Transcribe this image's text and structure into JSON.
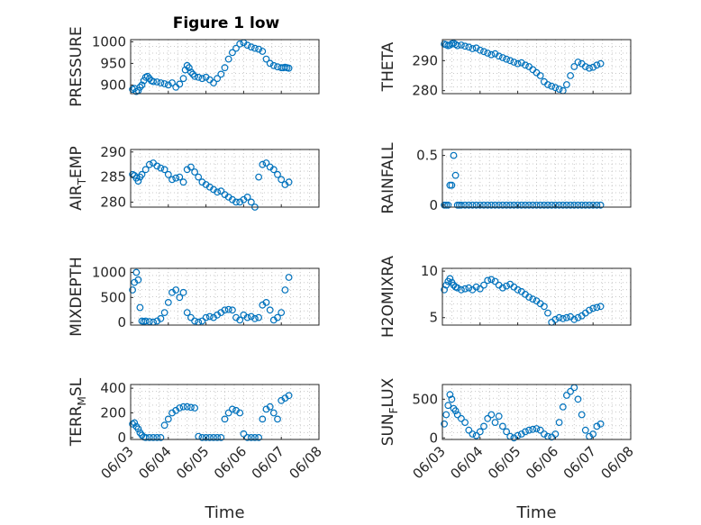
{
  "figure": {
    "title": "Figure 1 low"
  },
  "chart_data": [
    {
      "type": "scatter",
      "title": "Figure 1 low",
      "ylabel": {
        "base": "PRESSURE",
        "sub": "",
        "rest": ""
      },
      "xlabel": "",
      "xlim": [
        0,
        5
      ],
      "ylim": [
        880,
        1005
      ],
      "yticks": [
        900,
        950,
        1000
      ],
      "xticks": [],
      "show_xticklabels": false,
      "grid": true,
      "color": "#0072bd",
      "x": [
        0.05,
        0.1,
        0.15,
        0.2,
        0.25,
        0.3,
        0.35,
        0.4,
        0.45,
        0.5,
        0.55,
        0.6,
        0.7,
        0.8,
        0.9,
        1.0,
        1.1,
        1.2,
        1.3,
        1.4,
        1.45,
        1.5,
        1.55,
        1.6,
        1.65,
        1.7,
        1.8,
        1.9,
        2.0,
        2.1,
        2.2,
        2.3,
        2.4,
        2.5,
        2.6,
        2.7,
        2.8,
        2.9,
        3.0,
        3.1,
        3.2,
        3.3,
        3.4,
        3.5,
        3.6,
        3.7,
        3.8,
        3.9,
        4.0,
        4.05,
        4.1,
        4.15,
        4.2
      ],
      "y": [
        890,
        892,
        885,
        887,
        895,
        900,
        910,
        918,
        920,
        915,
        910,
        908,
        907,
        905,
        903,
        900,
        905,
        895,
        902,
        915,
        935,
        945,
        940,
        930,
        925,
        920,
        918,
        915,
        918,
        912,
        905,
        915,
        925,
        940,
        960,
        975,
        985,
        995,
        998,
        992,
        988,
        985,
        983,
        978,
        960,
        950,
        945,
        942,
        940,
        940,
        941,
        940,
        939
      ]
    },
    {
      "type": "scatter",
      "ylabel": {
        "base": "THETA",
        "sub": "",
        "rest": ""
      },
      "xlabel": "",
      "xlim": [
        0,
        5
      ],
      "ylim": [
        279,
        297
      ],
      "yticks": [
        280,
        290
      ],
      "xticks": [],
      "show_xticklabels": false,
      "grid": true,
      "color": "#0072bd",
      "x": [
        0.05,
        0.1,
        0.15,
        0.2,
        0.25,
        0.3,
        0.35,
        0.4,
        0.5,
        0.6,
        0.7,
        0.8,
        0.9,
        1.0,
        1.1,
        1.2,
        1.3,
        1.4,
        1.5,
        1.6,
        1.7,
        1.8,
        1.9,
        2.0,
        2.1,
        2.2,
        2.3,
        2.4,
        2.5,
        2.6,
        2.7,
        2.8,
        2.9,
        3.0,
        3.1,
        3.2,
        3.3,
        3.4,
        3.5,
        3.6,
        3.7,
        3.8,
        3.9,
        4.0,
        4.1,
        4.2
      ],
      "y": [
        295.5,
        295.3,
        295.0,
        295.2,
        295.6,
        295.8,
        295.4,
        295.0,
        295.2,
        294.8,
        294.5,
        294.0,
        294.2,
        293.5,
        293.0,
        292.5,
        292.0,
        292.3,
        291.5,
        291.0,
        290.5,
        290.0,
        289.5,
        289.0,
        289.3,
        288.5,
        288.0,
        287.0,
        286.0,
        285.0,
        283.0,
        282.0,
        281.5,
        281.0,
        280.5,
        280.0,
        282.0,
        285.0,
        288.0,
        289.5,
        289.0,
        288.0,
        287.5,
        287.8,
        288.5,
        289.0
      ]
    },
    {
      "type": "scatter",
      "ylabel": {
        "base": "AIR",
        "sub": "T",
        "rest": "EMP"
      },
      "xlabel": "",
      "xlim": [
        0,
        5
      ],
      "ylim": [
        279,
        290.5
      ],
      "yticks": [
        280,
        285,
        290
      ],
      "xticks": [],
      "show_xticklabels": false,
      "grid": true,
      "color": "#0072bd",
      "x": [
        0.05,
        0.1,
        0.15,
        0.2,
        0.25,
        0.3,
        0.4,
        0.5,
        0.6,
        0.7,
        0.8,
        0.9,
        1.0,
        1.1,
        1.2,
        1.3,
        1.4,
        1.5,
        1.6,
        1.7,
        1.8,
        1.9,
        2.0,
        2.1,
        2.2,
        2.3,
        2.4,
        2.5,
        2.6,
        2.7,
        2.8,
        2.9,
        3.0,
        3.1,
        3.2,
        3.3,
        3.4,
        3.5,
        3.6,
        3.7,
        3.8,
        3.9,
        4.0,
        4.1,
        4.2
      ],
      "y": [
        285.5,
        285.3,
        284.8,
        284.2,
        285.0,
        285.5,
        286.5,
        287.5,
        287.8,
        287.2,
        286.8,
        286.5,
        285.5,
        284.5,
        284.8,
        285.0,
        284.0,
        286.5,
        287.0,
        286.0,
        285.0,
        284.0,
        283.5,
        283.0,
        282.5,
        282.0,
        282.2,
        281.5,
        281.0,
        280.5,
        280.0,
        280.0,
        280.5,
        281.0,
        280.0,
        279.0,
        285.0,
        287.5,
        287.8,
        287.0,
        286.5,
        285.5,
        284.5,
        283.5,
        284.0
      ]
    },
    {
      "type": "scatter",
      "ylabel": {
        "base": "RAINFALL",
        "sub": "",
        "rest": ""
      },
      "xlabel": "",
      "xlim": [
        0,
        5
      ],
      "ylim": [
        -0.02,
        0.56
      ],
      "yticks": [
        0,
        0.5
      ],
      "xticks": [],
      "show_xticklabels": false,
      "grid": true,
      "color": "#0072bd",
      "x": [
        0.05,
        0.1,
        0.15,
        0.2,
        0.25,
        0.3,
        0.35,
        0.4,
        0.45,
        0.5,
        0.6,
        0.7,
        0.8,
        0.9,
        1.0,
        1.1,
        1.2,
        1.3,
        1.4,
        1.5,
        1.6,
        1.7,
        1.8,
        1.9,
        2.0,
        2.1,
        2.2,
        2.3,
        2.4,
        2.5,
        2.6,
        2.7,
        2.8,
        2.9,
        3.0,
        3.1,
        3.2,
        3.3,
        3.4,
        3.5,
        3.6,
        3.7,
        3.8,
        3.9,
        4.0,
        4.1,
        4.2
      ],
      "y": [
        0,
        0,
        0,
        0.2,
        0.2,
        0.5,
        0.3,
        0,
        0,
        0,
        0,
        0,
        0,
        0,
        0,
        0,
        0,
        0,
        0,
        0,
        0,
        0,
        0,
        0,
        0,
        0,
        0,
        0,
        0,
        0,
        0,
        0,
        0,
        0,
        0,
        0,
        0,
        0,
        0,
        0,
        0,
        0,
        0,
        0,
        0,
        0,
        0
      ]
    },
    {
      "type": "scatter",
      "ylabel": {
        "base": "MIXDEPTH",
        "sub": "",
        "rest": ""
      },
      "xlabel": "",
      "xlim": [
        0,
        5
      ],
      "ylim": [
        -50,
        1080
      ],
      "yticks": [
        0,
        500,
        1000
      ],
      "xticks": [],
      "show_xticklabels": false,
      "grid": true,
      "color": "#0072bd",
      "x": [
        0.05,
        0.1,
        0.15,
        0.2,
        0.25,
        0.3,
        0.35,
        0.4,
        0.5,
        0.6,
        0.7,
        0.8,
        0.9,
        1.0,
        1.1,
        1.2,
        1.3,
        1.4,
        1.5,
        1.6,
        1.7,
        1.8,
        1.9,
        2.0,
        2.1,
        2.2,
        2.3,
        2.4,
        2.5,
        2.6,
        2.7,
        2.8,
        2.9,
        3.0,
        3.1,
        3.2,
        3.3,
        3.4,
        3.5,
        3.6,
        3.7,
        3.8,
        3.9,
        4.0,
        4.1,
        4.2
      ],
      "y": [
        650,
        800,
        1000,
        850,
        300,
        30,
        20,
        30,
        20,
        10,
        30,
        80,
        200,
        400,
        600,
        650,
        500,
        600,
        200,
        100,
        30,
        10,
        30,
        100,
        120,
        100,
        150,
        200,
        250,
        260,
        250,
        100,
        50,
        150,
        100,
        120,
        80,
        100,
        350,
        400,
        250,
        50,
        100,
        200,
        650,
        900
      ]
    },
    {
      "type": "scatter",
      "ylabel": {
        "base": "H2OMIXRA",
        "sub": "",
        "rest": ""
      },
      "xlabel": "",
      "xlim": [
        0,
        5
      ],
      "ylim": [
        4.2,
        10.3
      ],
      "yticks": [
        5,
        10
      ],
      "xticks": [],
      "show_xticklabels": false,
      "grid": true,
      "color": "#0072bd",
      "x": [
        0.05,
        0.1,
        0.15,
        0.2,
        0.25,
        0.3,
        0.35,
        0.4,
        0.5,
        0.6,
        0.7,
        0.8,
        0.9,
        1.0,
        1.1,
        1.2,
        1.3,
        1.4,
        1.5,
        1.6,
        1.7,
        1.8,
        1.9,
        2.0,
        2.1,
        2.2,
        2.3,
        2.4,
        2.5,
        2.6,
        2.7,
        2.8,
        2.9,
        3.0,
        3.1,
        3.2,
        3.3,
        3.4,
        3.5,
        3.6,
        3.7,
        3.8,
        3.9,
        4.0,
        4.1,
        4.2
      ],
      "y": [
        8.0,
        8.5,
        8.9,
        9.2,
        8.8,
        8.5,
        8.3,
        8.2,
        8.0,
        8.1,
        8.2,
        8.0,
        8.3,
        8.1,
        8.5,
        9.0,
        9.1,
        8.9,
        8.5,
        8.2,
        8.4,
        8.6,
        8.3,
        8.0,
        7.8,
        7.5,
        7.2,
        7.0,
        6.8,
        6.5,
        6.2,
        5.5,
        4.5,
        4.8,
        5.0,
        4.9,
        5.0,
        5.1,
        4.8,
        5.0,
        5.2,
        5.5,
        5.8,
        6.0,
        6.1,
        6.2
      ]
    },
    {
      "type": "scatter",
      "ylabel": {
        "base": "TERR",
        "sub": "M",
        "rest": "SL"
      },
      "xlabel": "Time",
      "xlim": [
        0,
        5
      ],
      "ylim": [
        -15,
        430
      ],
      "yticks": [
        0,
        200,
        400
      ],
      "xticks": [
        0,
        1,
        2,
        3,
        4,
        5
      ],
      "show_xticklabels": true,
      "grid": true,
      "color": "#0072bd",
      "x": [
        0.05,
        0.1,
        0.15,
        0.2,
        0.25,
        0.3,
        0.35,
        0.4,
        0.5,
        0.6,
        0.7,
        0.8,
        0.9,
        1.0,
        1.1,
        1.2,
        1.3,
        1.4,
        1.5,
        1.6,
        1.7,
        1.8,
        1.9,
        2.0,
        2.1,
        2.2,
        2.3,
        2.4,
        2.5,
        2.6,
        2.7,
        2.8,
        2.9,
        3.0,
        3.1,
        3.2,
        3.3,
        3.4,
        3.5,
        3.6,
        3.7,
        3.8,
        3.9,
        4.0,
        4.1,
        4.2
      ],
      "y": [
        110,
        120,
        90,
        70,
        40,
        20,
        5,
        0,
        0,
        0,
        0,
        0,
        100,
        150,
        200,
        220,
        240,
        250,
        250,
        245,
        240,
        10,
        0,
        0,
        0,
        0,
        0,
        0,
        150,
        200,
        230,
        220,
        200,
        30,
        0,
        0,
        0,
        0,
        150,
        230,
        250,
        200,
        150,
        300,
        320,
        340
      ]
    },
    {
      "type": "scatter",
      "ylabel": {
        "base": "SUN",
        "sub": "F",
        "rest": "LUX"
      },
      "xlabel": "Time",
      "xlim": [
        0,
        5
      ],
      "ylim": [
        -20,
        690
      ],
      "yticks": [
        0,
        500
      ],
      "xticks": [
        0,
        1,
        2,
        3,
        4,
        5
      ],
      "show_xticklabels": true,
      "grid": true,
      "color": "#0072bd",
      "x": [
        0.05,
        0.1,
        0.15,
        0.2,
        0.25,
        0.3,
        0.35,
        0.4,
        0.5,
        0.6,
        0.7,
        0.8,
        0.9,
        1.0,
        1.1,
        1.2,
        1.3,
        1.4,
        1.5,
        1.6,
        1.7,
        1.8,
        1.9,
        2.0,
        2.1,
        2.2,
        2.3,
        2.4,
        2.5,
        2.6,
        2.7,
        2.8,
        2.9,
        3.0,
        3.1,
        3.2,
        3.3,
        3.4,
        3.5,
        3.6,
        3.7,
        3.8,
        3.9,
        4.0,
        4.1,
        4.2
      ],
      "y": [
        180,
        300,
        420,
        560,
        500,
        380,
        350,
        300,
        250,
        200,
        100,
        50,
        30,
        80,
        150,
        250,
        300,
        200,
        280,
        150,
        80,
        20,
        0,
        30,
        50,
        80,
        100,
        110,
        120,
        100,
        50,
        20,
        10,
        50,
        200,
        400,
        550,
        600,
        650,
        500,
        300,
        100,
        20,
        50,
        150,
        180
      ]
    }
  ],
  "xtick_labels": [
    "06/03",
    "06/04",
    "06/05",
    "06/06",
    "06/07",
    "06/08"
  ]
}
